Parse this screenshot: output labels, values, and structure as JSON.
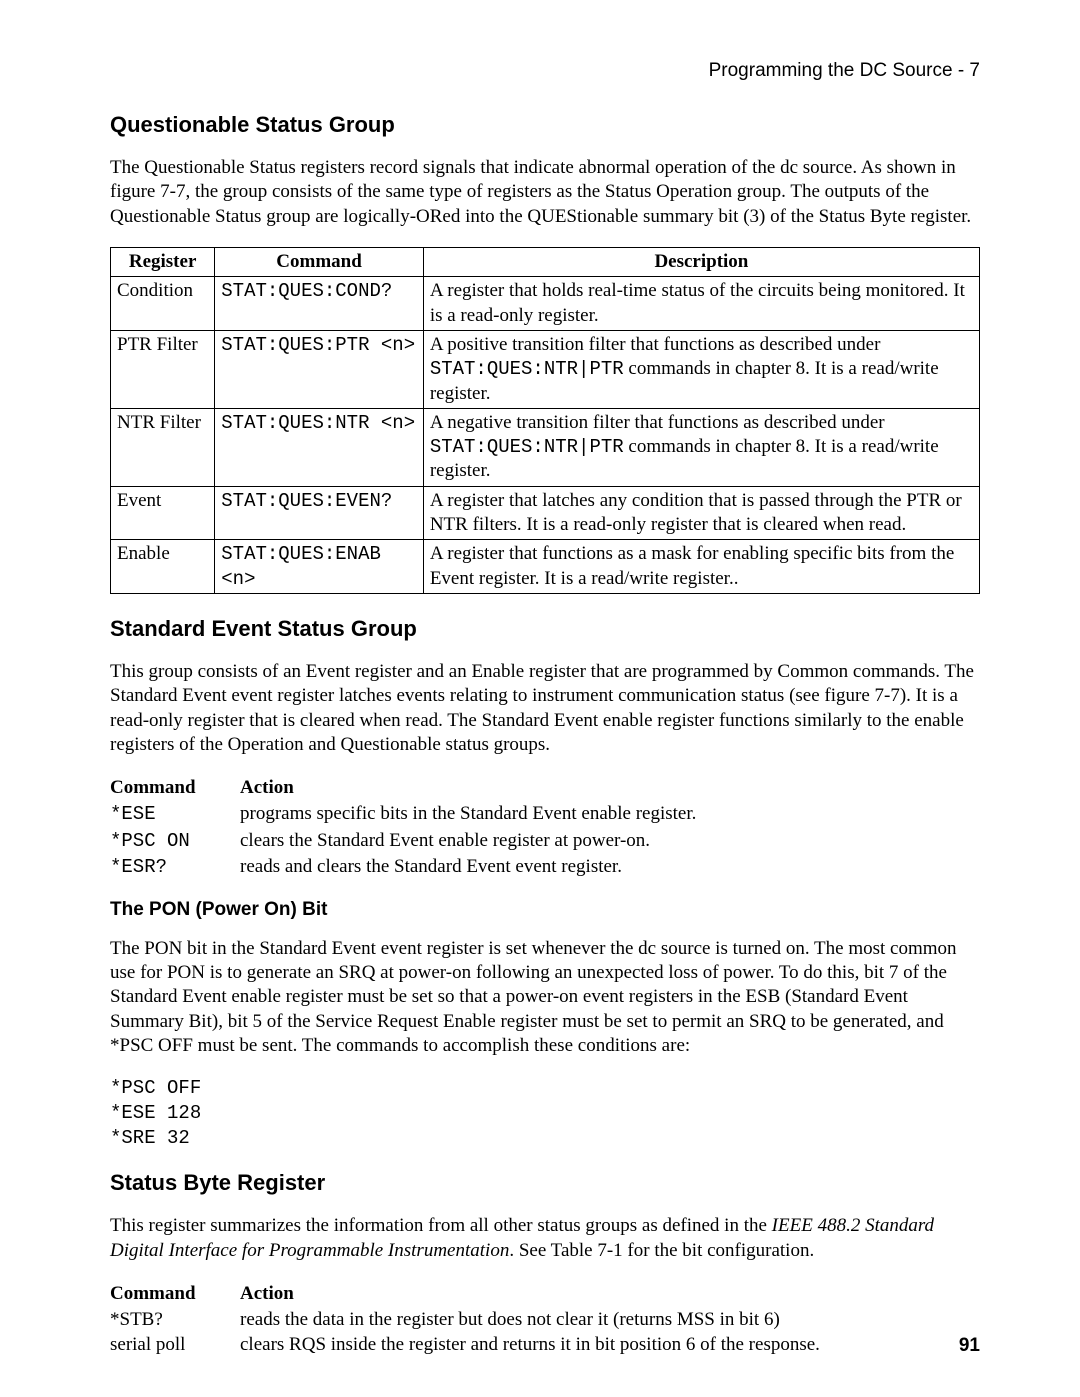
{
  "header": "Programming the DC Source - 7",
  "page_number": "91",
  "section1": {
    "title": "Questionable Status Group",
    "para": "The Questionable Status registers record signals that indicate abnormal operation of the dc source. As shown in figure 7-7, the group consists of the same type of registers as the Status Operation group. The outputs of the Questionable Status group are logically-ORed into the QUEStionable summary bit (3) of the Status Byte register.",
    "table": {
      "head": {
        "c0": "Register",
        "c1": "Command",
        "c2": "Description"
      },
      "rows": [
        {
          "c0": "Condition",
          "c1": "STAT:QUES:COND?",
          "c2": "A register that holds real-time status of the circuits being monitored. It is a read-only register."
        },
        {
          "c0": "PTR Filter",
          "c1": "STAT:QUES:PTR <n>",
          "c2_pre": "A positive transition filter that functions as described under ",
          "c2_code": "STAT:QUES:NTR|PTR",
          "c2_post": " commands in chapter 8. It is a read/write register."
        },
        {
          "c0": "NTR Filter",
          "c1": "STAT:QUES:NTR <n>",
          "c2_pre": "A negative transition filter that functions as described under ",
          "c2_code": "STAT:QUES:NTR|PTR",
          "c2_post": " commands in chapter 8.  It is a read/write register."
        },
        {
          "c0": "Event",
          "c1": "STAT:QUES:EVEN?",
          "c2": "A register that latches any condition that is passed through the PTR or NTR filters.  It is a read-only register that is cleared when read."
        },
        {
          "c0": "Enable",
          "c1": "STAT:QUES:ENAB <n>",
          "c2": "A register that functions as a mask for enabling specific bits from the Event register. It is a read/write register.."
        }
      ]
    }
  },
  "section2": {
    "title": "Standard Event Status Group",
    "para": "This group consists of an Event register and an Enable register that are programmed by Common commands. The Standard Event event register latches events relating to instrument communication status (see figure 7-7). It is a read-only register that is cleared when read. The Standard Event enable register functions similarly to the enable registers of the Operation and Questionable status groups.",
    "cmdlist": {
      "head": {
        "c0": "Command",
        "c1": "Action"
      },
      "rows": [
        {
          "c0": "*ESE",
          "c1": "programs specific bits in the Standard Event enable register."
        },
        {
          "c0": "*PSC ON",
          "c1": "clears the Standard Event enable register at power-on."
        },
        {
          "c0": "*ESR?",
          "c1": "reads and clears the Standard Event event register."
        }
      ]
    },
    "subheading": "The PON (Power On) Bit",
    "pon_para": "The PON bit in the Standard Event event register is set whenever the dc source is turned on. The most common use for PON is to generate an SRQ at power-on following an unexpected loss of power. To do this, bit 7 of the Standard Event enable register must be set so that a power-on event registers in the ESB (Standard Event Summary Bit), bit 5 of the Service Request Enable register must be set to permit an SRQ to be generated, and *PSC OFF must be sent. The commands to accomplish these conditions are:",
    "code": "*PSC OFF\n*ESE 128\n*SRE 32"
  },
  "section3": {
    "title": "Status Byte Register",
    "para_pre": "This register summarizes the information from all other status groups as defined in the ",
    "para_ital": "IEEE 488.2 Standard Digital Interface for Programmable Instrumentation",
    "para_post": ". See Table 7-1 for the bit configuration.",
    "cmdlist": {
      "head": {
        "c0": "Command",
        "c1": "Action"
      },
      "rows": [
        {
          "c0": "*STB?",
          "c1": "reads the data in the register but does not clear it (returns MSS in bit 6)"
        },
        {
          "c0": "serial poll",
          "c1": "clears RQS inside the register and returns it in bit position 6 of the response."
        }
      ]
    }
  }
}
